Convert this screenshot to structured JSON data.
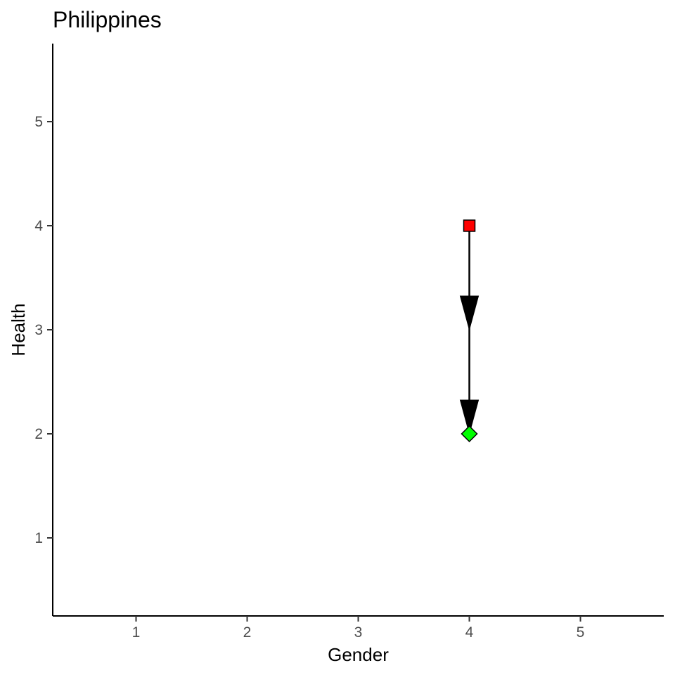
{
  "chart_data": {
    "type": "scatter",
    "title": "Philippines",
    "xlabel": "Gender",
    "ylabel": "Health",
    "xlim": [
      0.25,
      5.75
    ],
    "ylim": [
      0.25,
      5.75
    ],
    "x_ticks": [
      1,
      2,
      3,
      4,
      5
    ],
    "y_ticks": [
      1,
      2,
      3,
      4,
      5
    ],
    "grid": false,
    "points": [
      {
        "x": 4,
        "y": 4,
        "shape": "square",
        "color": "#ff0000"
      },
      {
        "x": 4,
        "y": 2,
        "shape": "diamond",
        "color": "#00ff00"
      }
    ],
    "arrows": [
      {
        "x_start": 4,
        "y_start": 4,
        "x_end": 4,
        "y_end": 3
      },
      {
        "x_start": 4,
        "y_start": 3,
        "x_end": 4,
        "y_end": 2
      }
    ]
  }
}
